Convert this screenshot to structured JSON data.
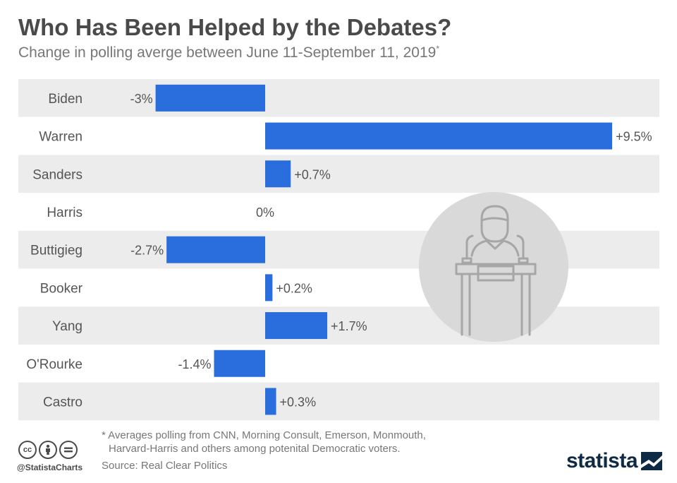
{
  "header": {
    "title": "Who Has Been Helped by the Debates?",
    "subtitle": "Change in polling averge between June 11-September 11, 2019",
    "subtitle_mark": "*"
  },
  "footer": {
    "footnote_line1": "* Averages polling from CNN, Morning Consult, Emerson, Monmouth,",
    "footnote_line2": "Harvard-Harris and others among potenital Democratic voters.",
    "source": "Source: Real Clear Politics",
    "handle": "@StatistaCharts",
    "brand": "statista",
    "license_icons": [
      "cc-icon",
      "attribution-icon",
      "no-derivatives-icon"
    ]
  },
  "illustration": {
    "icon": "debate-podium-icon"
  },
  "colors": {
    "bar": "#2a6ddd",
    "stripe": "#ececec",
    "label": "#555555",
    "circle": "#d9d9d9",
    "icon_stroke": "#a6a6a6"
  },
  "chart_data": {
    "type": "bar",
    "orientation": "horizontal",
    "categories": [
      "Biden",
      "Warren",
      "Sanders",
      "Harris",
      "Buttigieg",
      "Booker",
      "Yang",
      "O'Rourke",
      "Castro"
    ],
    "values": [
      -3,
      9.5,
      0.7,
      0,
      -2.7,
      0.2,
      1.7,
      -1.4,
      0.3
    ],
    "value_labels": [
      "-3%",
      "+9.5%",
      "+0.7%",
      "0%",
      "-2.7%",
      "+0.2%",
      "+1.7%",
      "-1.4%",
      "+0.3%"
    ],
    "xlim": [
      -4,
      10
    ],
    "title": "Who Has Been Helped by the Debates?",
    "xlabel": "",
    "ylabel": "",
    "grid": false,
    "legend": "none"
  }
}
